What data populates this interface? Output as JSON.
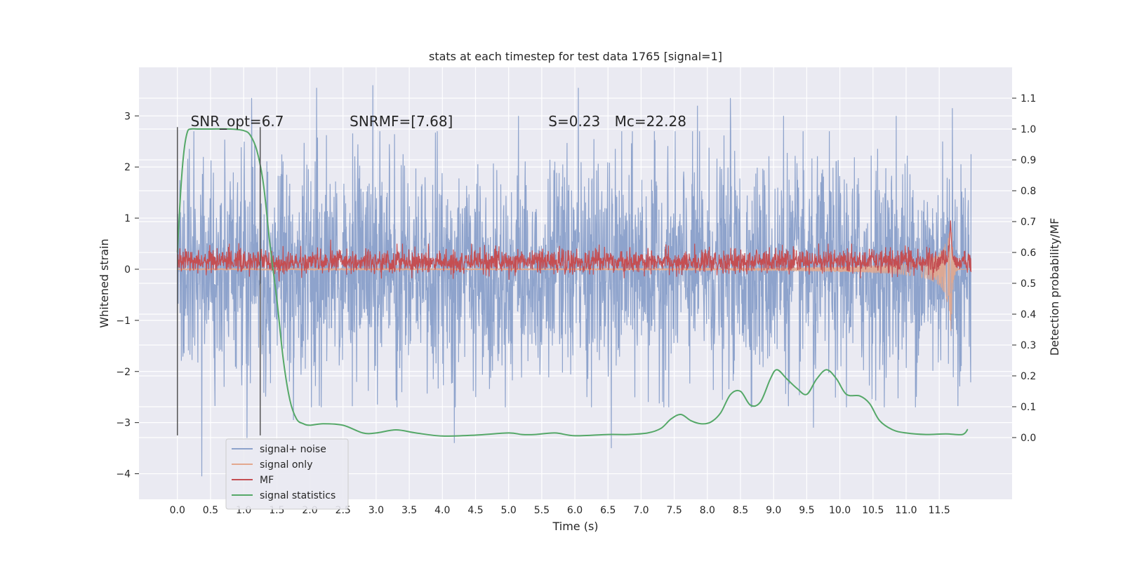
{
  "chart_data": {
    "type": "line",
    "title": "stats at each timestep for test data 1765 [signal=1]",
    "xlabel": "Time (s)",
    "ylabel": "Whitened strain",
    "y2label": "Detection probability/MF",
    "xlim": [
      -0.58,
      12.6
    ],
    "ylim": [
      -4.5,
      3.95
    ],
    "y2lim": [
      -0.2,
      1.2
    ],
    "xticks": [
      0.0,
      0.5,
      1.0,
      1.5,
      2.0,
      2.5,
      3.0,
      3.5,
      4.0,
      4.5,
      5.0,
      5.5,
      6.0,
      6.5,
      7.0,
      7.5,
      8.0,
      8.5,
      9.0,
      9.5,
      10.0,
      10.5,
      11.0,
      11.5
    ],
    "xtick_labels": [
      "0.0",
      "0.5",
      "1.0",
      "1.5",
      "2.0",
      "2.5",
      "3.0",
      "3.5",
      "4.0",
      "4.5",
      "5.0",
      "5.5",
      "6.0",
      "6.5",
      "7.0",
      "7.5",
      "8.0",
      "8.5",
      "9.0",
      "9.5",
      "10.0",
      "10.5",
      "11.0",
      "11.5"
    ],
    "yticks": [
      3,
      2,
      1,
      0,
      -1,
      -2,
      -3,
      -4
    ],
    "ytick_labels": [
      "3",
      "2",
      "1",
      "0",
      "−1",
      "−2",
      "−3",
      "−4"
    ],
    "y2ticks": [
      1.1,
      1.0,
      0.9,
      0.8,
      0.7,
      0.6,
      0.5,
      0.4,
      0.3,
      0.2,
      0.1,
      0.0
    ],
    "y2tick_labels": [
      "1.1",
      "1.0",
      "0.9",
      "0.8",
      "0.7",
      "0.6",
      "0.5",
      "0.4",
      "0.3",
      "0.2",
      "0.1",
      "0.0"
    ],
    "grid": true,
    "legend_position": "lower-left",
    "annotations": [
      {
        "x": 0.2,
        "y": 2.8,
        "text": "SNR_opt=6.7"
      },
      {
        "x": 2.6,
        "y": 2.8,
        "text": "SNRMF=[7.68]"
      },
      {
        "x": 5.6,
        "y": 2.8,
        "text": "S=0.23"
      },
      {
        "x": 6.6,
        "y": 2.8,
        "text": "Mc=22.28"
      }
    ],
    "vlines": [
      {
        "x": 0.0,
        "ymin": -3.25,
        "ymax": 2.78
      },
      {
        "x": 1.25,
        "ymin": -3.25,
        "ymax": 2.78
      }
    ],
    "series": [
      {
        "name": "signal+ noise",
        "color": "#8ea3cc",
        "x_range": [
          0.0,
          11.98
        ],
        "envelope_sigma": 1.05,
        "peaks": [
          [
            0.25,
            2.7
          ],
          [
            0.37,
            -4.05
          ],
          [
            1.12,
            3.35
          ],
          [
            1.05,
            -3.3
          ],
          [
            2.1,
            3.55
          ],
          [
            2.95,
            3.6
          ],
          [
            4.18,
            -3.4
          ],
          [
            5.15,
            3.0
          ],
          [
            6.05,
            3.55
          ],
          [
            6.55,
            -3.5
          ],
          [
            7.85,
            3.2
          ],
          [
            8.35,
            3.35
          ],
          [
            9.15,
            3.0
          ],
          [
            9.6,
            -3.1
          ],
          [
            10.85,
            3.0
          ],
          [
            11.7,
            3.15
          ],
          [
            11.55,
            2.5
          ],
          [
            1.75,
            -2.95
          ]
        ]
      },
      {
        "name": "signal only",
        "color": "#e3a88e",
        "x_range": [
          0.0,
          11.98
        ],
        "chirp_end": 11.68,
        "chirp_peak_amplitude": 1.3
      },
      {
        "name": "MF",
        "color": "#c44e52",
        "x_range": [
          0.0,
          11.98
        ],
        "baseline": 0.15,
        "spread": 0.12,
        "peak": [
          11.67,
          1.0
        ]
      },
      {
        "name": "signal statistics",
        "color": "#55a868",
        "axis": "y2",
        "x": [
          0.0,
          0.05,
          0.1,
          0.15,
          0.2,
          0.3,
          0.5,
          0.8,
          1.0,
          1.1,
          1.2,
          1.3,
          1.4,
          1.5,
          1.6,
          1.7,
          1.8,
          1.9,
          2.0,
          2.2,
          2.5,
          2.8,
          3.0,
          3.3,
          3.6,
          4.0,
          4.5,
          5.0,
          5.2,
          5.4,
          5.7,
          6.0,
          6.5,
          6.8,
          7.1,
          7.3,
          7.45,
          7.6,
          7.75,
          7.9,
          8.05,
          8.2,
          8.35,
          8.5,
          8.65,
          8.8,
          8.95,
          9.05,
          9.2,
          9.35,
          9.5,
          9.65,
          9.8,
          9.95,
          10.1,
          10.3,
          10.45,
          10.6,
          10.8,
          11.0,
          11.3,
          11.6,
          11.85,
          11.93
        ],
        "values": [
          0.6,
          0.8,
          0.93,
          0.99,
          1.0,
          1.0,
          1.0,
          1.0,
          0.995,
          0.98,
          0.93,
          0.82,
          0.62,
          0.45,
          0.25,
          0.12,
          0.06,
          0.045,
          0.04,
          0.045,
          0.04,
          0.015,
          0.015,
          0.025,
          0.015,
          0.005,
          0.008,
          0.015,
          0.01,
          0.01,
          0.015,
          0.006,
          0.01,
          0.01,
          0.015,
          0.03,
          0.06,
          0.075,
          0.055,
          0.045,
          0.05,
          0.08,
          0.14,
          0.15,
          0.105,
          0.115,
          0.19,
          0.22,
          0.19,
          0.16,
          0.14,
          0.19,
          0.22,
          0.19,
          0.14,
          0.135,
          0.11,
          0.055,
          0.025,
          0.015,
          0.01,
          0.012,
          0.01,
          0.027
        ]
      }
    ]
  }
}
